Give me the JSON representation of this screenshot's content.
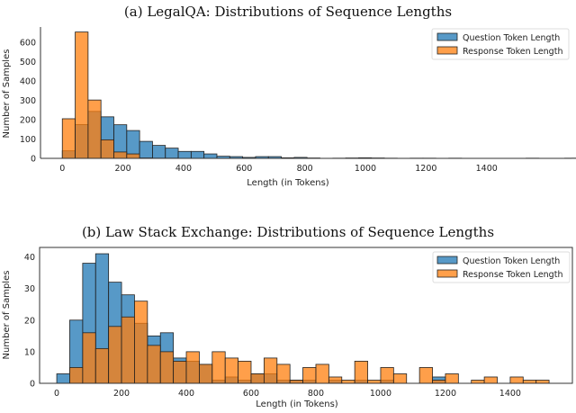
{
  "colors": {
    "question": "#1f77b4",
    "response": "#ff7f0e"
  },
  "chart_data": [
    {
      "type": "bar",
      "title": "(a) LegalQA: Distributions of Sequence Lengths",
      "xlabel": "Length (in Tokens)",
      "ylabel": "Number of Samples",
      "xlim": [
        -72,
        1680
      ],
      "ylim": [
        0,
        680
      ],
      "xticks": [
        0,
        200,
        400,
        600,
        800,
        1000,
        1200,
        1400
      ],
      "yticks": [
        0,
        100,
        200,
        300,
        400,
        500,
        600
      ],
      "bin_start": 0,
      "bin_width": 42.5,
      "legend": "top-right",
      "frame": false,
      "series": [
        {
          "name": "Question Token Length",
          "values": [
            39,
            175,
            243,
            215,
            174,
            144,
            88,
            67,
            53,
            36,
            36,
            23,
            11,
            9,
            5,
            9,
            9,
            3,
            5,
            2,
            0,
            1,
            2,
            3,
            2,
            1,
            0,
            1,
            1,
            0,
            1,
            0,
            0,
            0,
            0,
            0,
            1,
            0,
            0,
            1,
            0,
            0,
            0,
            0,
            0,
            0,
            1,
            0,
            0,
            0,
            0,
            0,
            0,
            0,
            0,
            1
          ]
        },
        {
          "name": "Response Token Length",
          "values": [
            205,
            654,
            302,
            96,
            33,
            23,
            2,
            1,
            1,
            0,
            0,
            0,
            0,
            0,
            0,
            0,
            0,
            0,
            0,
            0,
            0,
            0,
            0,
            0,
            0,
            0,
            0,
            0,
            0,
            0,
            0,
            0,
            0,
            0,
            0,
            0,
            0,
            0,
            0,
            0,
            0,
            0,
            0,
            0,
            0,
            0,
            0,
            0,
            0,
            0,
            0,
            0,
            0,
            0,
            0,
            0
          ]
        }
      ]
    },
    {
      "type": "bar",
      "title": "(b) Law Stack Exchange: Distributions of Sequence Lengths",
      "xlabel": "Length (in Tokens)",
      "ylabel": "Number of Samples",
      "xlim": [
        -53,
        1592
      ],
      "ylim": [
        0,
        43
      ],
      "xticks": [
        0,
        200,
        400,
        600,
        800,
        1000,
        1200,
        1400
      ],
      "yticks": [
        0,
        10,
        20,
        30,
        40
      ],
      "bin_start": 0,
      "bin_width": 40,
      "legend": "top-right",
      "frame": true,
      "series": [
        {
          "name": "Question Token Length",
          "values": [
            3,
            20,
            38,
            41,
            32,
            28,
            19,
            15,
            16,
            8,
            7,
            6,
            1,
            2,
            1,
            3,
            3,
            1,
            1,
            1,
            0,
            1,
            0,
            1,
            0,
            1,
            0,
            0,
            0,
            2,
            0,
            0,
            0,
            0,
            0,
            0,
            0,
            0
          ]
        },
        {
          "name": "Response Token Length",
          "values": [
            0,
            5,
            16,
            11,
            18,
            21,
            26,
            12,
            10,
            7,
            10,
            6,
            10,
            8,
            7,
            3,
            8,
            6,
            1,
            5,
            6,
            2,
            1,
            7,
            1,
            5,
            3,
            0,
            5,
            1,
            3,
            0,
            1,
            2,
            0,
            2,
            1,
            1
          ]
        }
      ]
    }
  ]
}
